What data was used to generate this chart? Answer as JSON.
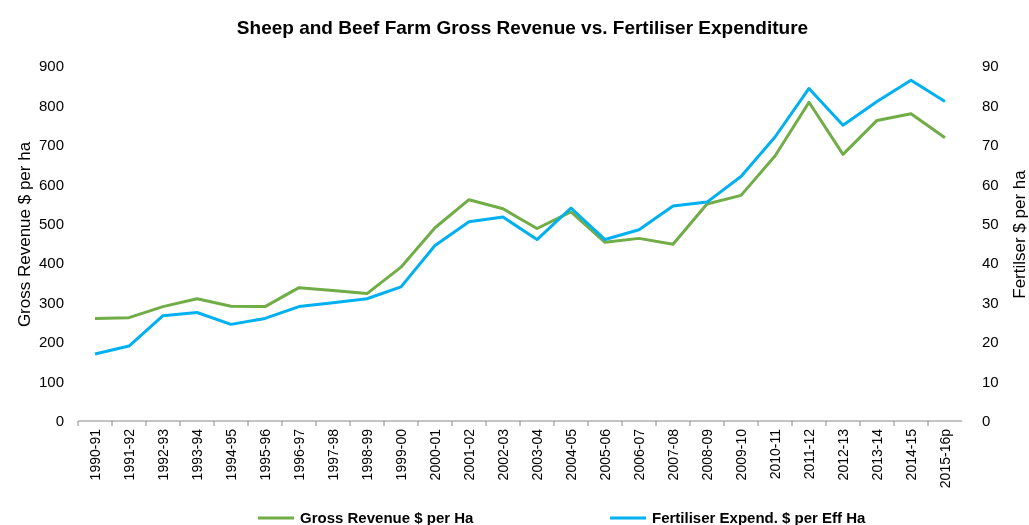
{
  "chart_data": {
    "type": "line",
    "title": "Sheep and Beef Farm Gross Revenue vs. Fertiliser Expenditure",
    "ylabel": "Gross Revenue $ per ha",
    "y2label": "Fertilser $ per ha",
    "categories": [
      "1990-91",
      "1991-92",
      "1992-93",
      "1993-94",
      "1994-95",
      "1995-96",
      "1996-97",
      "1997-98",
      "1998-99",
      "1999-00",
      "2000-01",
      "2001-02",
      "2002-03",
      "2003-04",
      "2004-05",
      "2005-06",
      "2006-07",
      "2007-08",
      "2008-09",
      "2009-10",
      "2010-11",
      "2011-12",
      "2012-13",
      "2013-14",
      "2014-15",
      "2015-16p"
    ],
    "series": [
      {
        "name": "Gross Revenue $ per Ha",
        "color": "#70ad47",
        "values": [
          260,
          262,
          290,
          310,
          291,
          290,
          338,
          331,
          323,
          390,
          490,
          561,
          538,
          488,
          530,
          453,
          463,
          448,
          550,
          572,
          672,
          808,
          676,
          762,
          779,
          718
        ]
      },
      {
        "name": "Fertiliser Expend. $ per Eff Ha",
        "color": "#00b0f0",
        "axis": "y2",
        "values": [
          17,
          19,
          26.7,
          27.5,
          24.5,
          26,
          29,
          30,
          31,
          34,
          44.5,
          50.5,
          51.7,
          46,
          54,
          46,
          48.5,
          54.5,
          55.5,
          62,
          72,
          84.3,
          75,
          81,
          86.4,
          81
        ]
      }
    ],
    "ylim": [
      0,
      900
    ],
    "yticks": [
      0,
      100,
      200,
      300,
      400,
      500,
      600,
      700,
      800,
      900
    ],
    "y2lim": [
      0,
      90
    ],
    "y2ticks": [
      0,
      10,
      20,
      30,
      40,
      50,
      60,
      70,
      80,
      90
    ],
    "grid": false,
    "legend": "bottom",
    "marker": "none",
    "line_style": "solid"
  }
}
